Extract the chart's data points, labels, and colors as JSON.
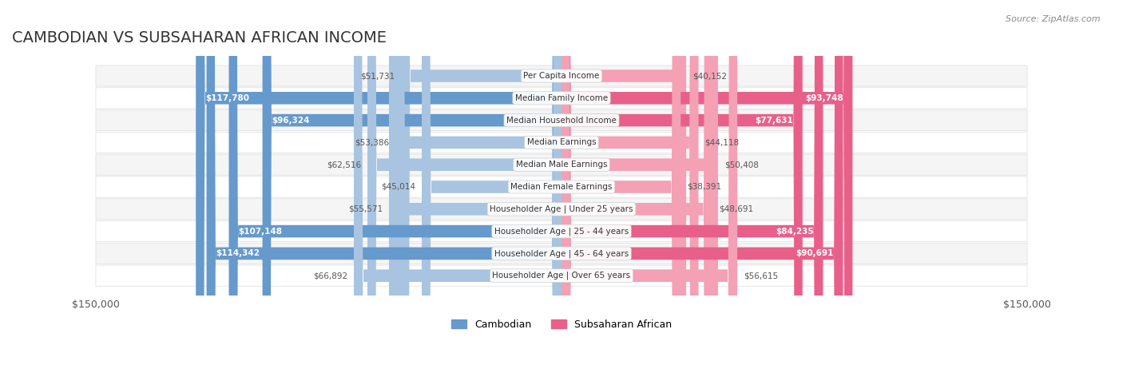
{
  "title": "CAMBODIAN VS SUBSAHARAN AFRICAN INCOME",
  "source": "Source: ZipAtlas.com",
  "categories": [
    "Per Capita Income",
    "Median Family Income",
    "Median Household Income",
    "Median Earnings",
    "Median Male Earnings",
    "Median Female Earnings",
    "Householder Age | Under 25 years",
    "Householder Age | 25 - 44 years",
    "Householder Age | 45 - 64 years",
    "Householder Age | Over 65 years"
  ],
  "cambodian_values": [
    51731,
    117780,
    96324,
    53386,
    62516,
    45014,
    55571,
    107148,
    114342,
    66892
  ],
  "subsaharan_values": [
    40152,
    93748,
    77631,
    44118,
    50408,
    38391,
    48691,
    84235,
    90691,
    56615
  ],
  "cambodian_color": "#a8c4e0",
  "cambodian_color_highlight": "#6699cc",
  "subsaharan_color": "#f4a0b5",
  "subsaharan_color_highlight": "#e8608a",
  "highlight_rows": [
    1,
    2,
    7,
    8
  ],
  "max_value": 150000,
  "bg_color": "#ffffff",
  "row_bg_light": "#f5f5f5",
  "row_bg_white": "#ffffff",
  "label_color_normal": "#555555",
  "label_color_highlight": "#ffffff",
  "axis_label": "$150,000",
  "title_fontsize": 14,
  "legend_cambodian": "Cambodian",
  "legend_subsaharan": "Subsaharan African"
}
